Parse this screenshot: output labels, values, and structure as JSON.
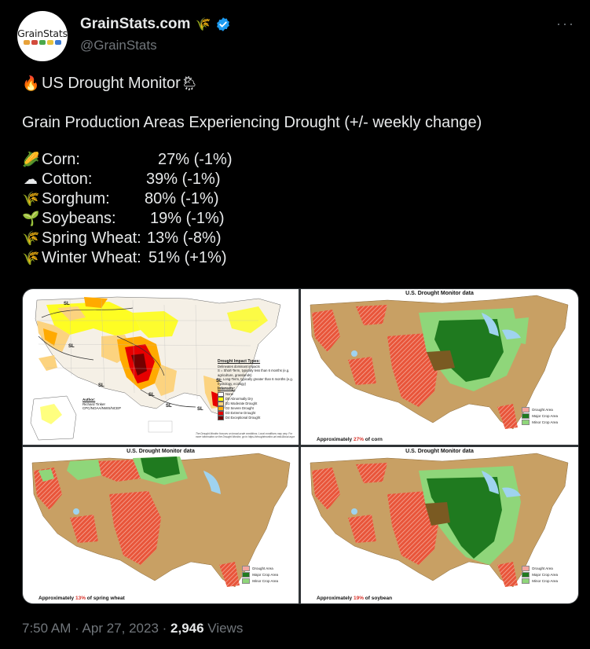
{
  "author": {
    "display_name": "GrainStats.com",
    "name_emoji": "🌾",
    "handle": "@GrainStats",
    "avatar_text": "GrainStats",
    "verified": true
  },
  "more_label": "···",
  "tweet": {
    "title_emoji_left": "🔥",
    "title": "US Drought Monitor",
    "title_emoji_right": "🌦",
    "subtitle": "Grain Production Areas Experiencing Drought (+/- weekly change)",
    "crops": [
      {
        "emoji": "🌽",
        "label": "Corn:",
        "value": "27% (-1%)"
      },
      {
        "emoji": "☁",
        "label": "Cotton:",
        "value": "39% (-1%)"
      },
      {
        "emoji": "🌾",
        "label": "Sorghum:",
        "value": "80% (-1%)"
      },
      {
        "emoji": "🌱",
        "label": "Soybeans:",
        "value": "19% (-1%)"
      },
      {
        "emoji": "🌾",
        "label": "Spring Wheat:",
        "value": "13% (-8%)"
      },
      {
        "emoji": "🌾",
        "label": "Winter Wheat:",
        "value": "51% (+1%)"
      }
    ]
  },
  "media": {
    "map1": {
      "impact_title": "Drought Impact Types:",
      "impact_lines": [
        "Delineates dominant impacts",
        "S = Short-Term, typically less than 6 months (e.g. agriculture, grasslands)",
        "L = Long-Term, typically greater than 6 months (e.g. hydrology, ecology)"
      ],
      "intensity_title": "Intensity:",
      "intensity_items": [
        {
          "label": "None",
          "color": "#ffffff"
        },
        {
          "label": "D0 Abnormally Dry",
          "color": "#ffff00"
        },
        {
          "label": "D1 Moderate Drought",
          "color": "#fcd37f"
        },
        {
          "label": "D2 Severe Drought",
          "color": "#ffaa00"
        },
        {
          "label": "D3 Extreme Drought",
          "color": "#e60000"
        },
        {
          "label": "D4 Exceptional Drought",
          "color": "#730000"
        }
      ],
      "author_title": "Author:",
      "author_name": "Richard Tinker",
      "author_org": "CPC/NOAA/NWS/NCEP",
      "footnote": "The Drought Monitor focuses on broad-scale conditions. Local conditions may vary. For more information on the Drought Monitor, go to https://droughtmonitor.unl.edu/About.aspx",
      "labels": [
        "SL",
        "SL",
        "SL",
        "SL",
        "SL",
        "SL",
        "SL"
      ]
    },
    "map2": {
      "title": "U.S. Drought Monitor data",
      "caption_prefix": "Approximately ",
      "caption_pct": "27%",
      "caption_suffix": " of corn"
    },
    "map3": {
      "title": "U.S. Drought Monitor data",
      "caption_prefix": "Approximately ",
      "caption_pct": "13%",
      "caption_suffix": " of spring wheat"
    },
    "map4": {
      "title": "U.S. Drought Monitor data",
      "caption_prefix": "Approximately ",
      "caption_pct": "19%",
      "caption_suffix": " of soybean"
    },
    "crop_legend": [
      {
        "label": "Drought Area",
        "color": "#f4a6a0"
      },
      {
        "label": "Major Crop Area",
        "color": "#1f7a1f"
      },
      {
        "label": "Minor Crop Area",
        "color": "#8fd67a"
      }
    ]
  },
  "timestamp": {
    "time": "7:50 AM",
    "separator": " · ",
    "date": "Apr 27, 2023",
    "separator2": " · ",
    "views_count": "2,946",
    "views_label": " Views"
  },
  "colors": {
    "background": "#000000",
    "text": "#e7e9ea",
    "muted": "#71767b",
    "verified": "#1d9bf0",
    "map_base": "#c8a064",
    "drought_hatch": "#e8553a",
    "major_crop": "#1f7a1f",
    "minor_crop": "#8fd67a",
    "lake": "#9fd3ef"
  }
}
